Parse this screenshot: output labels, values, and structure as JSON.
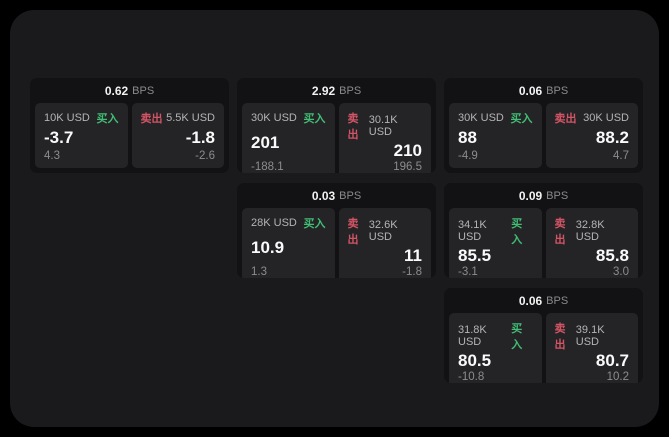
{
  "colors": {
    "page_bg": "#000000",
    "container_bg": "#1a1a1c",
    "card_bg": "#121214",
    "panel_bg": "#242427",
    "buy_green": "#41bd74",
    "sell_red": "#d25465"
  },
  "labels": {
    "bps_unit": "BPS",
    "buy": "买入",
    "sell": "卖出"
  },
  "cards": [
    {
      "row": 1,
      "col": 1,
      "bps": "0.62",
      "buy": {
        "amount": "10K USD",
        "price": "-3.7",
        "sub": "4.3"
      },
      "sell": {
        "amount": "5.5K USD",
        "price": "-1.8",
        "sub": "-2.6"
      }
    },
    {
      "row": 1,
      "col": 2,
      "bps": "2.92",
      "buy": {
        "amount": "30K USD",
        "price": "201",
        "sub": "-188.1"
      },
      "sell": {
        "amount": "30.1K USD",
        "price": "210",
        "sub": "196.5"
      }
    },
    {
      "row": 1,
      "col": 3,
      "bps": "0.06",
      "buy": {
        "amount": "30K USD",
        "price": "88",
        "sub": "-4.9"
      },
      "sell": {
        "amount": "30K USD",
        "price": "88.2",
        "sub": "4.7"
      }
    },
    {
      "row": 2,
      "col": 2,
      "bps": "0.03",
      "buy": {
        "amount": "28K USD",
        "price": "10.9",
        "sub": "1.3"
      },
      "sell": {
        "amount": "32.6K USD",
        "price": "11",
        "sub": "-1.8"
      }
    },
    {
      "row": 2,
      "col": 3,
      "bps": "0.09",
      "buy": {
        "amount": "34.1K USD",
        "price": "85.5",
        "sub": "-3.1"
      },
      "sell": {
        "amount": "32.8K USD",
        "price": "85.8",
        "sub": "3.0"
      }
    },
    {
      "row": 3,
      "col": 3,
      "bps": "0.06",
      "buy": {
        "amount": "31.8K USD",
        "price": "80.5",
        "sub": "-10.8"
      },
      "sell": {
        "amount": "39.1K USD",
        "price": "80.7",
        "sub": "10.2"
      }
    }
  ]
}
